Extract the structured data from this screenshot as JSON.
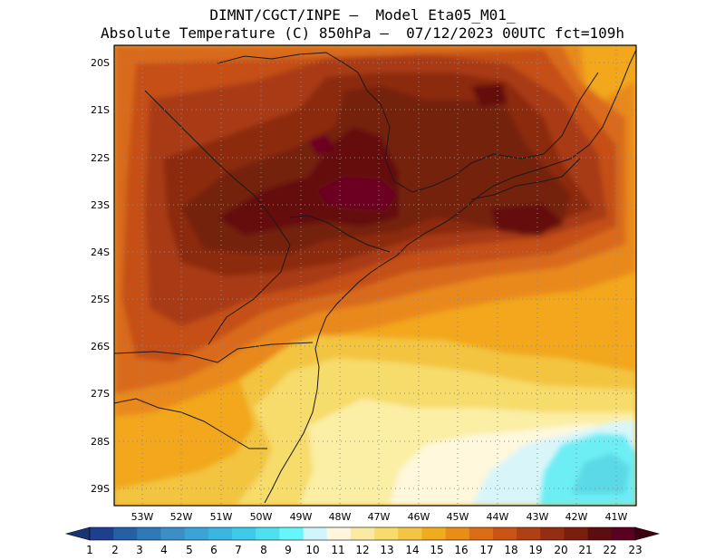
{
  "header": {
    "line1": "DIMNT/CGCT/INPE —  Model Eta05_M01_",
    "line2": "Absolute Temperature (C) 850hPa —  07/12/2023 00UTC fct=109h"
  },
  "map": {
    "lat_labels": [
      "20S",
      "21S",
      "22S",
      "23S",
      "24S",
      "25S",
      "26S",
      "27S",
      "28S",
      "29S"
    ],
    "lon_labels": [
      "53W",
      "52W",
      "51W",
      "50W",
      "49W",
      "48W",
      "47W",
      "46W",
      "45W",
      "44W",
      "43W",
      "42W",
      "41W"
    ],
    "field_colors": {
      "c15": "#f2a71c",
      "c16": "#e9891a",
      "c17": "#d96a1a",
      "c18": "#c54f16",
      "c19": "#a83a12",
      "c20": "#8c2a10",
      "c21": "#75200f",
      "c22": "#65100f",
      "c23": "#6d0024",
      "c14": "#f3c441",
      "c13": "#f6dc6b",
      "c12": "#fbeea5",
      "c11": "#fff8dc",
      "c10": "#d8f6fa",
      "c9": "#6deef5",
      "c8": "#5cd9e6"
    }
  },
  "colorbar": {
    "values": [
      "1",
      "2",
      "3",
      "4",
      "5",
      "6",
      "7",
      "8",
      "9",
      "10",
      "11",
      "12",
      "13",
      "14",
      "15",
      "16",
      "17",
      "18",
      "19",
      "20",
      "21",
      "22",
      "23"
    ],
    "colors": [
      "#1e3f8e",
      "#2360a5",
      "#2f79b8",
      "#3b8fc7",
      "#3aa3d8",
      "#3bb6e3",
      "#3ecbea",
      "#4fe0f0",
      "#66f5fb",
      "#d2f5fc",
      "#fff6de",
      "#fbeaa2",
      "#f7dc6c",
      "#f4c545",
      "#f0ac1e",
      "#e98d18",
      "#db6d17",
      "#c95416",
      "#b03f13",
      "#942d11",
      "#7a1e0f",
      "#5c0d10",
      "#5a0022"
    ],
    "under_color": "#163574",
    "over_color": "#3d0010"
  }
}
